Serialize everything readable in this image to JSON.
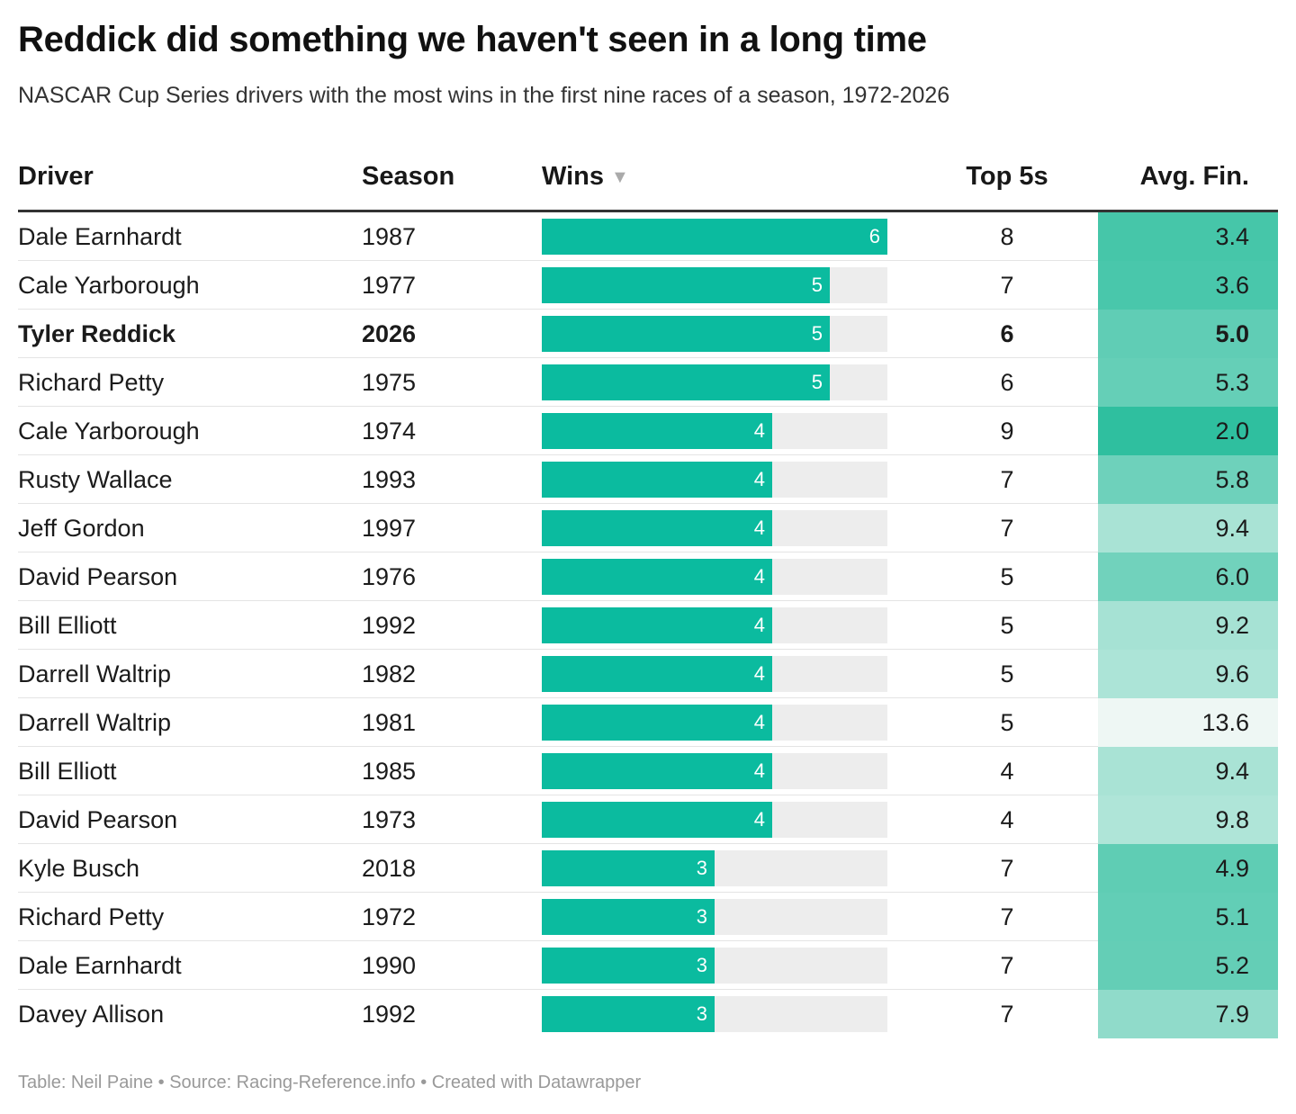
{
  "title": "Reddick did something we haven't seen in a long time",
  "subtitle": "NASCAR Cup Series drivers with the most wins in the first nine races of a season, 1972-2026",
  "footer": "Table: Neil Paine • Source: Racing-Reference.info • Created with Datawrapper",
  "colors": {
    "bar": "#0bbb9f",
    "bar_track": "#ededed",
    "heat_low": "#eef7f4",
    "heat_high": "#2fbf9f"
  },
  "chart_data": {
    "type": "table",
    "columns": [
      "Driver",
      "Season",
      "Wins",
      "Top 5s",
      "Avg. Fin."
    ],
    "sorted_by": "Wins",
    "wins_max": 6,
    "rows": [
      {
        "driver": "Dale Earnhardt",
        "season": "1987",
        "wins": 6,
        "top5": "8",
        "avg": "3.4",
        "bold": false
      },
      {
        "driver": "Cale Yarborough",
        "season": "1977",
        "wins": 5,
        "top5": "7",
        "avg": "3.6",
        "bold": false
      },
      {
        "driver": "Tyler Reddick",
        "season": "2026",
        "wins": 5,
        "top5": "6",
        "avg": "5.0",
        "bold": true
      },
      {
        "driver": "Richard Petty",
        "season": "1975",
        "wins": 5,
        "top5": "6",
        "avg": "5.3",
        "bold": false
      },
      {
        "driver": "Cale Yarborough",
        "season": "1974",
        "wins": 4,
        "top5": "9",
        "avg": "2.0",
        "bold": false
      },
      {
        "driver": "Rusty Wallace",
        "season": "1993",
        "wins": 4,
        "top5": "7",
        "avg": "5.8",
        "bold": false
      },
      {
        "driver": "Jeff Gordon",
        "season": "1997",
        "wins": 4,
        "top5": "7",
        "avg": "9.4",
        "bold": false
      },
      {
        "driver": "David Pearson",
        "season": "1976",
        "wins": 4,
        "top5": "5",
        "avg": "6.0",
        "bold": false
      },
      {
        "driver": "Bill Elliott",
        "season": "1992",
        "wins": 4,
        "top5": "5",
        "avg": "9.2",
        "bold": false
      },
      {
        "driver": "Darrell Waltrip",
        "season": "1982",
        "wins": 4,
        "top5": "5",
        "avg": "9.6",
        "bold": false
      },
      {
        "driver": "Darrell Waltrip",
        "season": "1981",
        "wins": 4,
        "top5": "5",
        "avg": "13.6",
        "bold": false
      },
      {
        "driver": "Bill Elliott",
        "season": "1985",
        "wins": 4,
        "top5": "4",
        "avg": "9.4",
        "bold": false
      },
      {
        "driver": "David Pearson",
        "season": "1973",
        "wins": 4,
        "top5": "4",
        "avg": "9.8",
        "bold": false
      },
      {
        "driver": "Kyle Busch",
        "season": "2018",
        "wins": 3,
        "top5": "7",
        "avg": "4.9",
        "bold": false
      },
      {
        "driver": "Richard Petty",
        "season": "1972",
        "wins": 3,
        "top5": "7",
        "avg": "5.1",
        "bold": false
      },
      {
        "driver": "Dale Earnhardt",
        "season": "1990",
        "wins": 3,
        "top5": "7",
        "avg": "5.2",
        "bold": false
      },
      {
        "driver": "Davey Allison",
        "season": "1992",
        "wins": 3,
        "top5": "7",
        "avg": "7.9",
        "bold": false
      }
    ]
  }
}
